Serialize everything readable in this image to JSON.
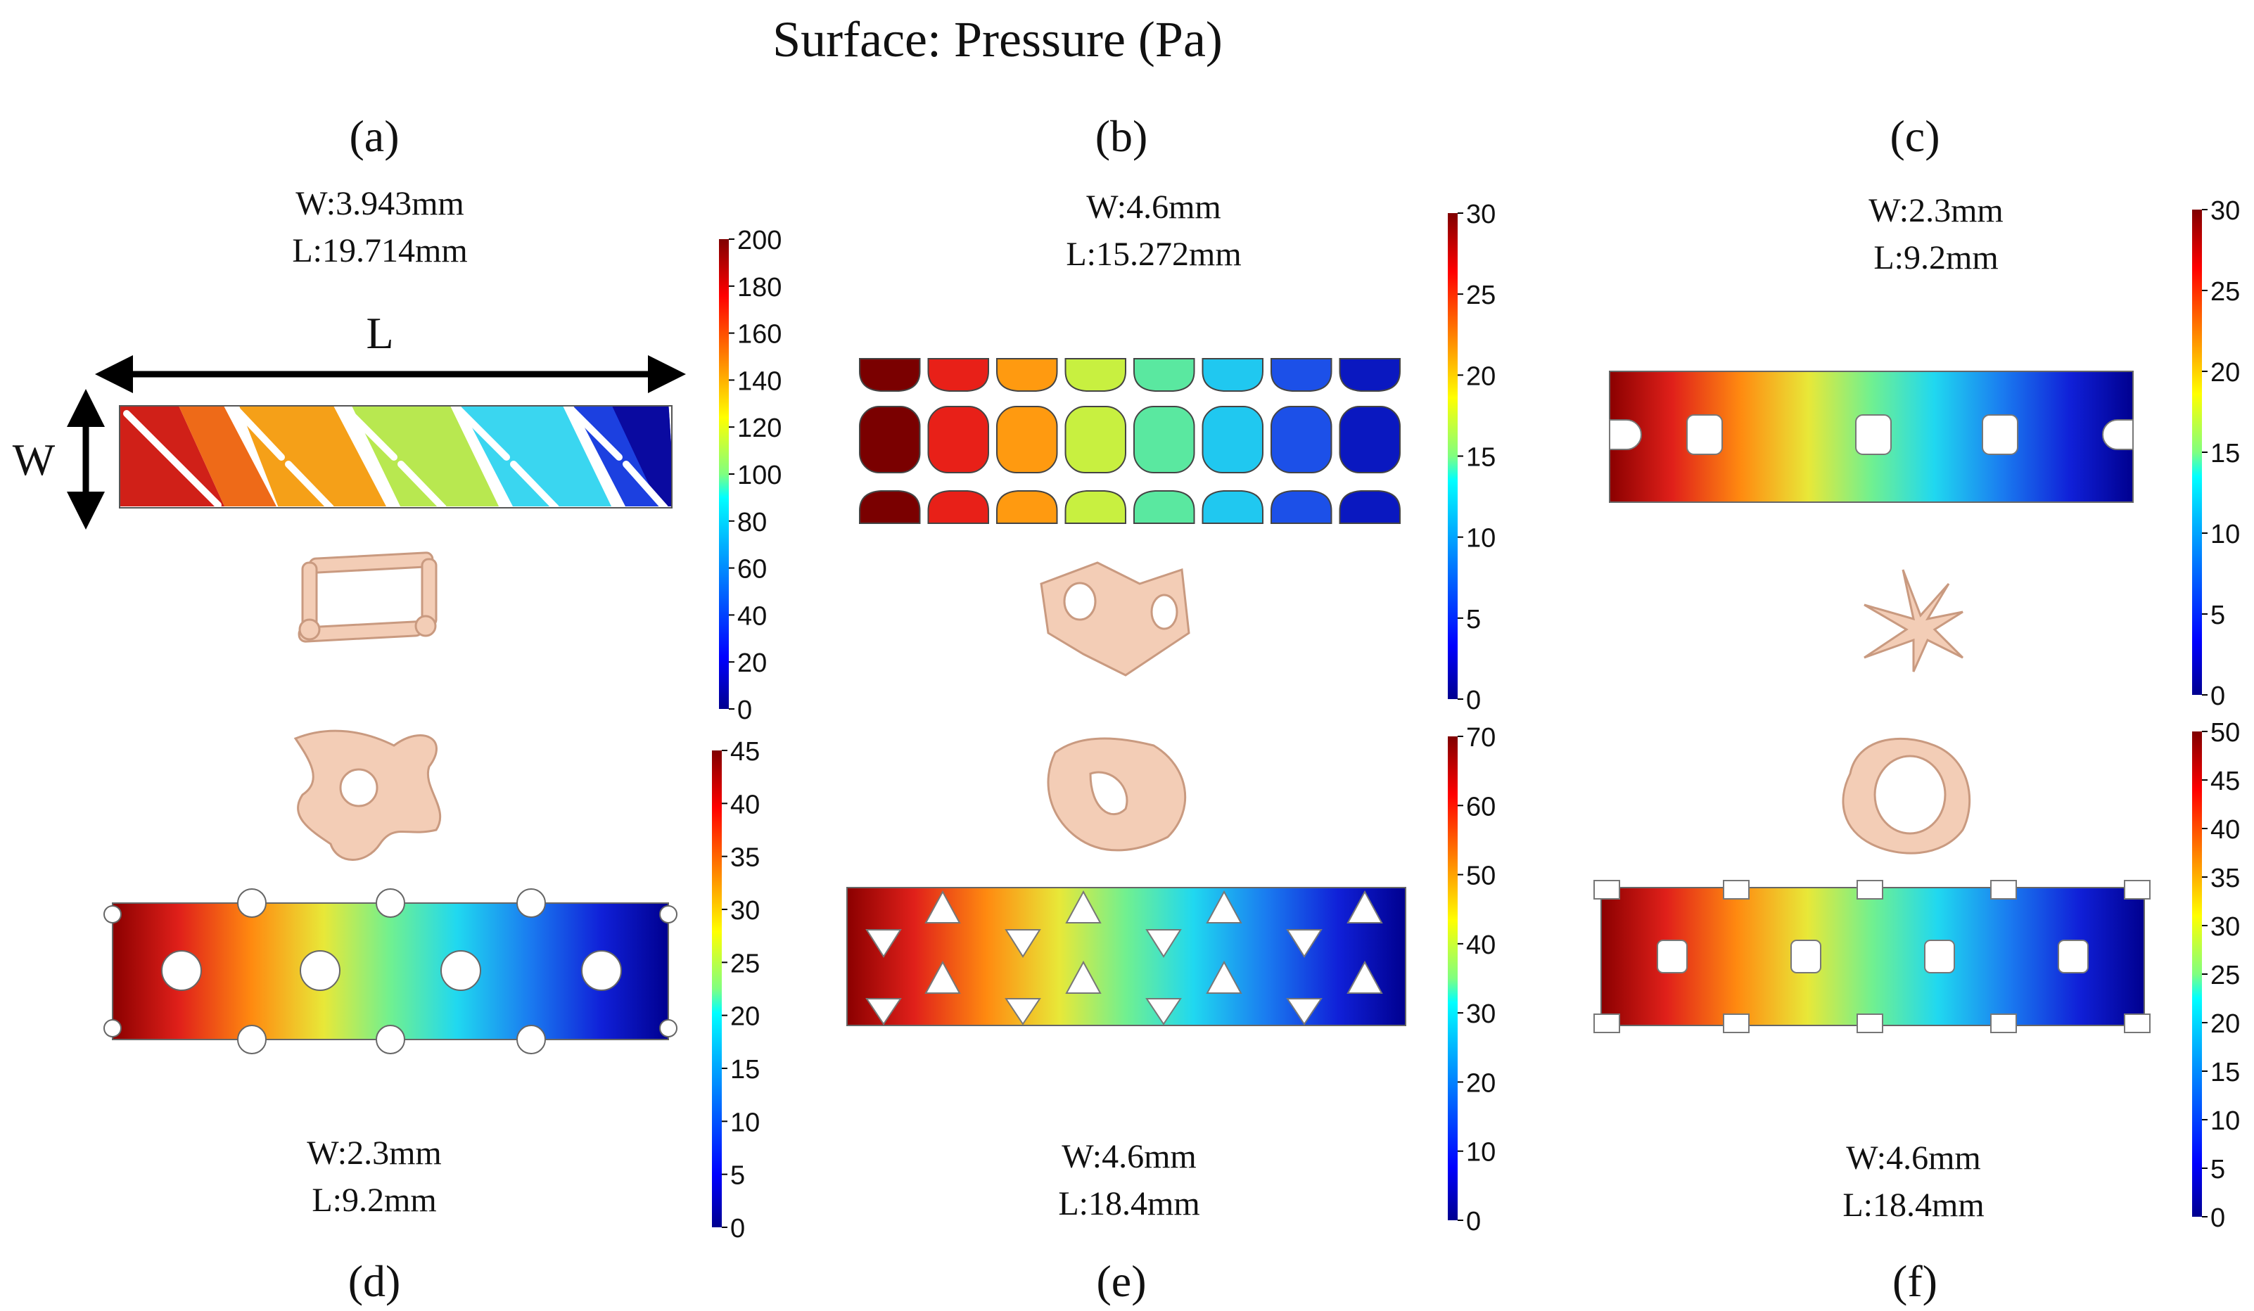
{
  "title": "Surface: Pressure (Pa)",
  "axis_labels": {
    "length": "L",
    "width": "W"
  },
  "colormap": [
    "#00008f",
    "#0000ff",
    "#0080ff",
    "#00ffff",
    "#80ff80",
    "#ffff00",
    "#ff8000",
    "#ff0000",
    "#800000"
  ],
  "panels": [
    {
      "id": "a",
      "label": "(a)",
      "w_text": "W:3.943mm",
      "l_text": "L:19.714mm",
      "pattern": "diagonal",
      "colorbar": {
        "min": 0,
        "max": 200,
        "ticks": [
          0,
          20,
          40,
          60,
          80,
          100,
          120,
          140,
          160,
          180,
          200
        ]
      }
    },
    {
      "id": "b",
      "label": "(b)",
      "w_text": "W:4.6mm",
      "l_text": "L:15.272mm",
      "pattern": "cells",
      "colorbar": {
        "min": 0,
        "max": 30,
        "ticks": [
          0,
          5,
          10,
          15,
          20,
          25,
          30
        ]
      }
    },
    {
      "id": "c",
      "label": "(c)",
      "w_text": "W:2.3mm",
      "l_text": "L:9.2mm",
      "pattern": "square-holes",
      "colorbar": {
        "min": 0,
        "max": 30,
        "ticks": [
          0,
          5,
          10,
          15,
          20,
          25,
          30
        ]
      }
    },
    {
      "id": "d",
      "label": "(d)",
      "w_text": "W:2.3mm",
      "l_text": "L:9.2mm",
      "pattern": "round-holes",
      "colorbar": {
        "min": 0,
        "max": 45,
        "ticks": [
          0,
          5,
          10,
          15,
          20,
          25,
          30,
          35,
          40,
          45
        ]
      }
    },
    {
      "id": "e",
      "label": "(e)",
      "w_text": "W:4.6mm",
      "l_text": "L:18.4mm",
      "pattern": "triangles",
      "colorbar": {
        "min": 0,
        "max": 70,
        "ticks": [
          0,
          10,
          20,
          30,
          40,
          50,
          60,
          70
        ]
      }
    },
    {
      "id": "f",
      "label": "(f)",
      "w_text": "W:4.6mm",
      "l_text": "L:18.4mm",
      "pattern": "square-holes-notched",
      "colorbar": {
        "min": 0,
        "max": 50,
        "ticks": [
          0,
          5,
          10,
          15,
          20,
          25,
          30,
          35,
          40,
          45,
          50
        ]
      }
    }
  ],
  "unit_cell_color": "#f3cdb6"
}
